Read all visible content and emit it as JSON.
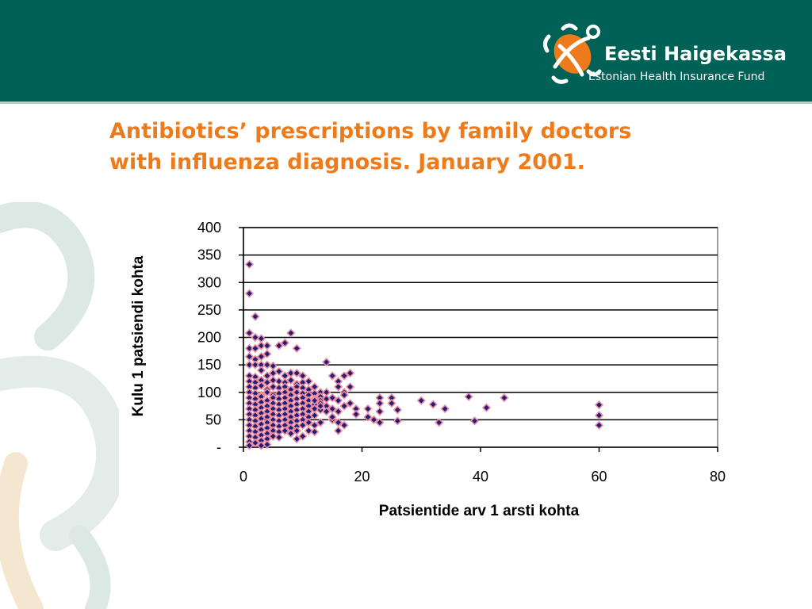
{
  "header": {
    "brand_name": "Eesti Haigekassa",
    "brand_sub": "Estonian Health Insurance Fund",
    "logo_icon": "turtle-logo-icon",
    "bg_color": "#006257"
  },
  "slide": {
    "title_line1": "Antibiotics’ prescriptions by family doctors",
    "title_line2": "with influenza diagnosis. January 2001.",
    "title_color": "#ee7b1b"
  },
  "chart_data": {
    "type": "scatter",
    "xlabel": "Patsientide arv 1 arsti kohta",
    "ylabel": "Kulu 1 patsiendi kohta",
    "xlim": [
      0,
      80
    ],
    "ylim": [
      0,
      400
    ],
    "x_ticks": [
      "0",
      "20",
      "40",
      "60",
      "80"
    ],
    "y_ticks": [
      "-",
      "50",
      "100",
      "150",
      "200",
      "250",
      "300",
      "350",
      "400"
    ],
    "grid": "horizontal",
    "legend": "none",
    "marker_color": "#1f1f78",
    "marker_edge": "#ef8ea0",
    "points": [
      [
        1,
        333
      ],
      [
        1,
        280
      ],
      [
        2,
        238
      ],
      [
        1,
        208
      ],
      [
        2,
        200
      ],
      [
        3,
        198
      ],
      [
        1,
        180
      ],
      [
        2,
        180
      ],
      [
        3,
        185
      ],
      [
        4,
        185
      ],
      [
        6,
        185
      ],
      [
        7,
        190
      ],
      [
        8,
        208
      ],
      [
        9,
        180
      ],
      [
        1,
        165
      ],
      [
        2,
        160
      ],
      [
        3,
        165
      ],
      [
        4,
        170
      ],
      [
        1,
        150
      ],
      [
        2,
        150
      ],
      [
        3,
        150
      ],
      [
        4,
        150
      ],
      [
        5,
        148
      ],
      [
        3,
        140
      ],
      [
        5,
        135
      ],
      [
        6,
        138
      ],
      [
        7,
        130
      ],
      [
        8,
        135
      ],
      [
        9,
        135
      ],
      [
        10,
        130
      ],
      [
        1,
        130
      ],
      [
        2,
        128
      ],
      [
        4,
        130
      ],
      [
        1,
        120
      ],
      [
        2,
        118
      ],
      [
        3,
        122
      ],
      [
        4,
        118
      ],
      [
        5,
        122
      ],
      [
        6,
        120
      ],
      [
        7,
        118
      ],
      [
        8,
        122
      ],
      [
        9,
        115
      ],
      [
        10,
        118
      ],
      [
        11,
        120
      ],
      [
        1,
        110
      ],
      [
        2,
        108
      ],
      [
        3,
        112
      ],
      [
        4,
        105
      ],
      [
        5,
        110
      ],
      [
        6,
        108
      ],
      [
        7,
        110
      ],
      [
        8,
        105
      ],
      [
        9,
        110
      ],
      [
        10,
        108
      ],
      [
        11,
        105
      ],
      [
        12,
        110
      ],
      [
        13,
        100
      ],
      [
        1,
        100
      ],
      [
        2,
        98
      ],
      [
        3,
        95
      ],
      [
        4,
        100
      ],
      [
        5,
        95
      ],
      [
        6,
        98
      ],
      [
        7,
        100
      ],
      [
        8,
        95
      ],
      [
        9,
        100
      ],
      [
        10,
        98
      ],
      [
        11,
        95
      ],
      [
        12,
        98
      ],
      [
        13,
        92
      ],
      [
        14,
        100
      ],
      [
        1,
        90
      ],
      [
        2,
        88
      ],
      [
        3,
        92
      ],
      [
        4,
        85
      ],
      [
        5,
        90
      ],
      [
        6,
        88
      ],
      [
        7,
        90
      ],
      [
        8,
        85
      ],
      [
        9,
        88
      ],
      [
        10,
        90
      ],
      [
        11,
        85
      ],
      [
        12,
        88
      ],
      [
        13,
        85
      ],
      [
        14,
        88
      ],
      [
        1,
        80
      ],
      [
        2,
        78
      ],
      [
        3,
        82
      ],
      [
        4,
        75
      ],
      [
        5,
        80
      ],
      [
        6,
        78
      ],
      [
        7,
        80
      ],
      [
        8,
        75
      ],
      [
        9,
        78
      ],
      [
        10,
        80
      ],
      [
        11,
        75
      ],
      [
        12,
        78
      ],
      [
        13,
        80
      ],
      [
        14,
        75
      ],
      [
        1,
        70
      ],
      [
        2,
        68
      ],
      [
        3,
        72
      ],
      [
        4,
        65
      ],
      [
        5,
        70
      ],
      [
        6,
        68
      ],
      [
        7,
        70
      ],
      [
        8,
        65
      ],
      [
        9,
        68
      ],
      [
        10,
        70
      ],
      [
        11,
        65
      ],
      [
        12,
        70
      ],
      [
        13,
        68
      ],
      [
        1,
        60
      ],
      [
        2,
        58
      ],
      [
        3,
        62
      ],
      [
        4,
        55
      ],
      [
        5,
        60
      ],
      [
        6,
        58
      ],
      [
        7,
        60
      ],
      [
        8,
        55
      ],
      [
        9,
        58
      ],
      [
        10,
        60
      ],
      [
        11,
        55
      ],
      [
        12,
        58
      ],
      [
        1,
        50
      ],
      [
        2,
        48
      ],
      [
        3,
        52
      ],
      [
        4,
        45
      ],
      [
        5,
        50
      ],
      [
        6,
        48
      ],
      [
        7,
        50
      ],
      [
        8,
        45
      ],
      [
        9,
        48
      ],
      [
        10,
        50
      ],
      [
        11,
        45
      ],
      [
        1,
        40
      ],
      [
        2,
        38
      ],
      [
        3,
        42
      ],
      [
        4,
        35
      ],
      [
        5,
        40
      ],
      [
        6,
        38
      ],
      [
        7,
        40
      ],
      [
        8,
        35
      ],
      [
        9,
        38
      ],
      [
        10,
        40
      ],
      [
        1,
        30
      ],
      [
        2,
        28
      ],
      [
        3,
        32
      ],
      [
        4,
        25
      ],
      [
        5,
        30
      ],
      [
        6,
        28
      ],
      [
        7,
        30
      ],
      [
        8,
        25
      ],
      [
        1,
        20
      ],
      [
        2,
        18
      ],
      [
        3,
        22
      ],
      [
        4,
        15
      ],
      [
        5,
        20
      ],
      [
        6,
        18
      ],
      [
        1,
        10
      ],
      [
        2,
        8
      ],
      [
        3,
        12
      ],
      [
        4,
        5
      ],
      [
        1,
        3
      ],
      [
        3,
        3
      ],
      [
        14,
        155
      ],
      [
        15,
        130
      ],
      [
        16,
        120
      ],
      [
        17,
        130
      ],
      [
        18,
        135
      ],
      [
        16,
        110
      ],
      [
        17,
        100
      ],
      [
        18,
        110
      ],
      [
        15,
        90
      ],
      [
        16,
        85
      ],
      [
        17,
        95
      ],
      [
        15,
        70
      ],
      [
        16,
        65
      ],
      [
        17,
        75
      ],
      [
        18,
        80
      ],
      [
        19,
        70
      ],
      [
        15,
        50
      ],
      [
        16,
        45
      ],
      [
        17,
        40
      ],
      [
        16,
        30
      ],
      [
        15,
        55
      ],
      [
        19,
        60
      ],
      [
        21,
        70
      ],
      [
        21,
        55
      ],
      [
        22,
        50
      ],
      [
        23,
        90
      ],
      [
        23,
        80
      ],
      [
        23,
        65
      ],
      [
        23,
        45
      ],
      [
        25,
        90
      ],
      [
        25,
        80
      ],
      [
        26,
        68
      ],
      [
        26,
        48
      ],
      [
        30,
        85
      ],
      [
        32,
        78
      ],
      [
        33,
        45
      ],
      [
        34,
        70
      ],
      [
        38,
        92
      ],
      [
        39,
        48
      ],
      [
        41,
        72
      ],
      [
        44,
        90
      ],
      [
        60,
        77
      ],
      [
        60,
        58
      ],
      [
        60,
        40
      ],
      [
        9,
        30
      ],
      [
        9,
        15
      ],
      [
        12,
        40
      ],
      [
        12,
        28
      ],
      [
        13,
        45
      ],
      [
        11,
        30
      ],
      [
        10,
        20
      ],
      [
        13,
        75
      ],
      [
        14,
        65
      ],
      [
        12,
        85
      ]
    ]
  }
}
